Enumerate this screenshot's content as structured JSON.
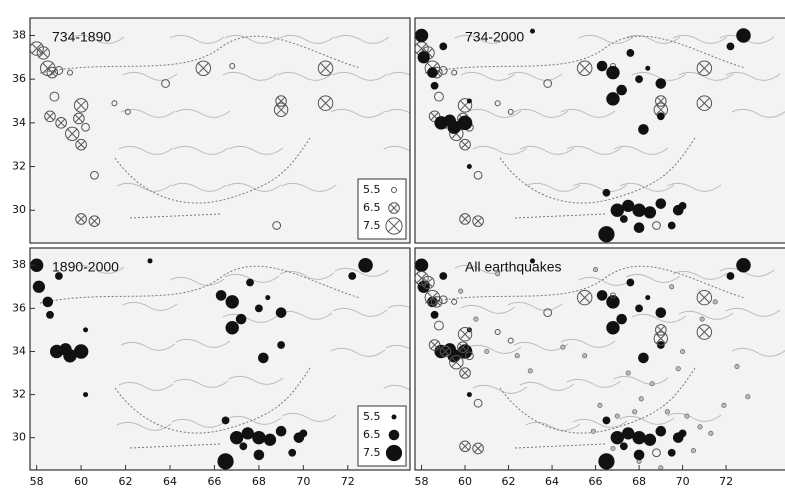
{
  "chart_data": [
    {
      "type": "scatter",
      "title": "734-1890",
      "xlim": [
        57.7,
        74.8
      ],
      "ylim": [
        28.5,
        38.8
      ],
      "yticks": [
        30,
        32,
        34,
        36,
        38
      ],
      "legend": [
        5.5,
        6.5,
        7.5
      ],
      "legend_style": "open-x",
      "series": [
        {
          "style": "open-x",
          "x": [
            58.0,
            58.3,
            58.5,
            58.7,
            59.0,
            59.5,
            58.8,
            60.0,
            59.9,
            58.6,
            59.1,
            59.6,
            60.2,
            60.0,
            60.6,
            60.0,
            60.6,
            63.8,
            65.5,
            66.8,
            69.0,
            69.0,
            71.0,
            71.0,
            62.1,
            61.5,
            68.8
          ],
          "y": [
            37.4,
            37.2,
            36.5,
            36.3,
            36.4,
            36.3,
            35.2,
            34.8,
            34.2,
            34.3,
            34.0,
            33.5,
            33.8,
            33.0,
            31.6,
            29.6,
            29.5,
            35.8,
            36.5,
            36.6,
            35.0,
            34.6,
            36.5,
            34.9,
            34.5,
            34.9,
            29.3
          ],
          "mag": [
            7.0,
            6.8,
            7.2,
            6.5,
            6.0,
            5.5,
            6.2,
            7.0,
            6.5,
            6.5,
            6.5,
            7.0,
            6.0,
            6.5,
            6.0,
            6.5,
            6.5,
            6.0,
            7.2,
            5.5,
            6.5,
            7.0,
            7.2,
            7.2,
            5.5,
            5.5,
            6.0
          ]
        }
      ]
    },
    {
      "type": "scatter",
      "title": "734-2000",
      "xlim": [
        57.7,
        74.8
      ],
      "ylim": [
        28.5,
        38.8
      ],
      "series": [
        {
          "style": "open-x",
          "x": [
            58.0,
            58.3,
            58.5,
            58.7,
            59.0,
            59.5,
            58.8,
            60.0,
            59.9,
            58.6,
            59.1,
            59.6,
            60.2,
            60.0,
            60.6,
            60.0,
            60.6,
            63.8,
            65.5,
            66.8,
            69.0,
            69.0,
            71.0,
            71.0,
            62.1,
            61.5,
            68.8
          ],
          "y": [
            37.4,
            37.2,
            36.5,
            36.3,
            36.4,
            36.3,
            35.2,
            34.8,
            34.2,
            34.3,
            34.0,
            33.5,
            33.8,
            33.0,
            31.6,
            29.6,
            29.5,
            35.8,
            36.5,
            36.6,
            35.0,
            34.6,
            36.5,
            34.9,
            34.5,
            34.9,
            29.3
          ],
          "mag": [
            7.0,
            6.8,
            7.2,
            6.5,
            6.0,
            5.5,
            6.2,
            7.0,
            6.5,
            6.5,
            6.5,
            7.0,
            6.0,
            6.5,
            6.0,
            6.5,
            6.5,
            6.0,
            7.2,
            5.5,
            6.5,
            7.0,
            7.2,
            7.2,
            5.5,
            5.5,
            6.0
          ]
        },
        {
          "style": "filled",
          "x": [
            58.0,
            58.1,
            58.5,
            59.0,
            58.6,
            58.9,
            59.5,
            60.0,
            59.3,
            60.2,
            66.3,
            66.8,
            67.2,
            66.8,
            68.0,
            69.0,
            67.6,
            68.4,
            72.8,
            72.2,
            68.2,
            69.0,
            66.5,
            67.0,
            67.5,
            68.0,
            68.5,
            69.0,
            69.8,
            66.5,
            68.0,
            67.3,
            70.0,
            69.5,
            63.1,
            60.2
          ],
          "y": [
            38.0,
            37.0,
            36.3,
            37.5,
            35.7,
            34.0,
            33.8,
            34.0,
            34.1,
            32.0,
            36.6,
            36.3,
            35.5,
            35.1,
            36.0,
            35.8,
            37.2,
            36.5,
            38.0,
            37.5,
            33.7,
            34.3,
            30.8,
            30.0,
            30.2,
            30.0,
            29.9,
            30.3,
            30.0,
            28.9,
            29.2,
            29.6,
            30.2,
            29.3,
            38.2,
            35.0
          ],
          "mag": [
            7.0,
            6.8,
            6.5,
            6.0,
            6.0,
            7.0,
            7.0,
            7.2,
            6.8,
            5.5,
            6.5,
            7.0,
            6.5,
            7.0,
            6.0,
            6.5,
            6.0,
            5.5,
            7.2,
            6.0,
            6.5,
            6.0,
            6.0,
            7.0,
            6.8,
            7.0,
            6.8,
            6.5,
            6.5,
            7.5,
            6.5,
            6.0,
            6.0,
            6.0,
            5.5,
            5.5
          ]
        }
      ]
    },
    {
      "type": "scatter",
      "title": "1890-2000",
      "xlim": [
        57.7,
        74.8
      ],
      "ylim": [
        28.5,
        38.8
      ],
      "yticks": [
        30,
        32,
        34,
        36,
        38
      ],
      "xticks": [
        58,
        60,
        62,
        64,
        66,
        68,
        70,
        72
      ],
      "legend": [
        5.5,
        6.5,
        7.5
      ],
      "legend_style": "filled",
      "series": [
        {
          "style": "filled",
          "x": [
            58.0,
            58.1,
            58.5,
            59.0,
            58.6,
            58.9,
            59.5,
            60.0,
            59.3,
            60.2,
            66.3,
            66.8,
            67.2,
            66.8,
            68.0,
            69.0,
            67.6,
            68.4,
            72.8,
            72.2,
            68.2,
            69.0,
            66.5,
            67.0,
            67.5,
            68.0,
            68.5,
            69.0,
            69.8,
            66.5,
            68.0,
            67.3,
            70.0,
            69.5,
            63.1,
            60.2
          ],
          "y": [
            38.0,
            37.0,
            36.3,
            37.5,
            35.7,
            34.0,
            33.8,
            34.0,
            34.1,
            32.0,
            36.6,
            36.3,
            35.5,
            35.1,
            36.0,
            35.8,
            37.2,
            36.5,
            38.0,
            37.5,
            33.7,
            34.3,
            30.8,
            30.0,
            30.2,
            30.0,
            29.9,
            30.3,
            30.0,
            28.9,
            29.2,
            29.6,
            30.2,
            29.3,
            38.2,
            35.0
          ],
          "mag": [
            7.0,
            6.8,
            6.5,
            6.0,
            6.0,
            7.0,
            7.0,
            7.2,
            6.8,
            5.5,
            6.5,
            7.0,
            6.5,
            7.0,
            6.0,
            6.5,
            6.0,
            5.5,
            7.2,
            6.0,
            6.5,
            6.0,
            6.0,
            7.0,
            6.8,
            7.0,
            6.8,
            6.5,
            6.5,
            7.5,
            6.5,
            6.0,
            6.0,
            6.0,
            5.5,
            5.5
          ]
        }
      ]
    },
    {
      "type": "scatter",
      "title": "All earthquakes",
      "xlim": [
        57.7,
        74.8
      ],
      "ylim": [
        28.5,
        38.8
      ],
      "xticks": [
        58,
        60,
        62,
        64,
        66,
        68,
        70,
        72
      ],
      "series": [
        {
          "style": "gray",
          "x": [
            66.2,
            67.0,
            68.1,
            68.6,
            69.3,
            70.2,
            70.8,
            71.3,
            70.5,
            71.9,
            72.5,
            73.0,
            69.8,
            67.5,
            65.5,
            64.5,
            63.0,
            62.4,
            61.0,
            60.5,
            59.8,
            61.5,
            66.0,
            69.5,
            71.5,
            70.9,
            68.0,
            69.0,
            66.8,
            67.8,
            65.9,
            70.0
          ],
          "y": [
            31.5,
            31.0,
            31.8,
            32.5,
            31.2,
            31.0,
            30.5,
            30.2,
            29.4,
            31.5,
            33.3,
            31.9,
            33.2,
            33.0,
            33.8,
            34.2,
            33.1,
            33.8,
            34.0,
            35.5,
            36.8,
            37.6,
            37.8,
            37.0,
            36.3,
            35.5,
            28.9,
            28.6,
            29.5,
            31.2,
            30.3,
            34.0
          ],
          "mag": [
            5.5,
            5.5,
            5.5,
            5.5,
            5.5,
            5.5,
            5.5,
            5.5,
            5.5,
            5.5,
            5.5,
            5.5,
            5.5,
            5.5,
            5.5,
            5.5,
            5.5,
            5.5,
            5.5,
            5.5,
            5.5,
            5.5,
            5.5,
            5.5,
            5.5,
            5.5,
            5.5,
            5.5,
            5.5,
            5.5,
            5.5,
            5.5
          ]
        },
        {
          "style": "filled",
          "x": [
            58.0,
            58.1,
            58.5,
            59.0,
            58.6,
            58.9,
            59.5,
            60.0,
            59.3,
            60.2,
            66.3,
            66.8,
            67.2,
            66.8,
            68.0,
            69.0,
            67.6,
            68.4,
            72.8,
            72.2,
            68.2,
            69.0,
            66.5,
            67.0,
            67.5,
            68.0,
            68.5,
            69.0,
            69.8,
            66.5,
            68.0,
            67.3,
            70.0,
            69.5,
            63.1,
            60.2
          ],
          "y": [
            38.0,
            37.0,
            36.3,
            37.5,
            35.7,
            34.0,
            33.8,
            34.0,
            34.1,
            32.0,
            36.6,
            36.3,
            35.5,
            35.1,
            36.0,
            35.8,
            37.2,
            36.5,
            38.0,
            37.5,
            33.7,
            34.3,
            30.8,
            30.0,
            30.2,
            30.0,
            29.9,
            30.3,
            30.0,
            28.9,
            29.2,
            29.6,
            30.2,
            29.3,
            38.2,
            35.0
          ],
          "mag": [
            7.0,
            6.8,
            6.5,
            6.0,
            6.0,
            7.0,
            7.0,
            7.2,
            6.8,
            5.5,
            6.5,
            7.0,
            6.5,
            7.0,
            6.0,
            6.5,
            6.0,
            5.5,
            7.2,
            6.0,
            6.5,
            6.0,
            6.0,
            7.0,
            6.8,
            7.0,
            6.8,
            6.5,
            6.5,
            7.5,
            6.5,
            6.0,
            6.0,
            6.0,
            5.5,
            5.5
          ]
        },
        {
          "style": "open-x",
          "x": [
            58.0,
            58.3,
            58.5,
            58.7,
            59.0,
            59.5,
            58.8,
            60.0,
            59.9,
            58.6,
            59.1,
            59.6,
            60.2,
            60.0,
            60.6,
            60.0,
            60.6,
            63.8,
            65.5,
            66.8,
            69.0,
            69.0,
            71.0,
            71.0,
            62.1,
            61.5,
            68.8
          ],
          "y": [
            37.4,
            37.2,
            36.5,
            36.3,
            36.4,
            36.3,
            35.2,
            34.8,
            34.2,
            34.3,
            34.0,
            33.5,
            33.8,
            33.0,
            31.6,
            29.6,
            29.5,
            35.8,
            36.5,
            36.6,
            35.0,
            34.6,
            36.5,
            34.9,
            34.5,
            34.9,
            29.3
          ],
          "mag": [
            7.0,
            6.8,
            7.2,
            6.5,
            6.0,
            5.5,
            6.2,
            7.0,
            6.5,
            6.5,
            6.5,
            7.0,
            6.0,
            6.5,
            6.0,
            6.5,
            6.5,
            6.0,
            7.2,
            5.5,
            6.5,
            7.0,
            7.2,
            7.2,
            5.5,
            5.5,
            6.0
          ]
        }
      ]
    }
  ]
}
